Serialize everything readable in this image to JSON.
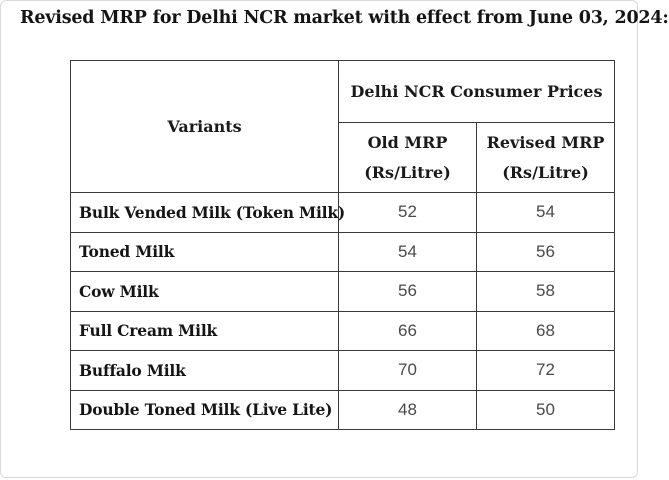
{
  "heading": "Revised MRP for Delhi NCR market with effect from June 03, 2024:",
  "table": {
    "variants_header": "Variants",
    "group_header": "Delhi NCR Consumer Prices",
    "old_mrp_header_line1": "Old MRP",
    "old_mrp_header_line2": "(Rs/Litre)",
    "revised_mrp_header_line1": "Revised MRP",
    "revised_mrp_header_line2": "(Rs/Litre)",
    "rows": [
      {
        "variant": "Bulk Vended Milk (Token Milk)",
        "old_mrp": "52",
        "revised_mrp": "54"
      },
      {
        "variant": "Toned Milk",
        "old_mrp": "54",
        "revised_mrp": "56"
      },
      {
        "variant": "Cow Milk",
        "old_mrp": "56",
        "revised_mrp": "58"
      },
      {
        "variant": "Full Cream Milk",
        "old_mrp": "66",
        "revised_mrp": "68"
      },
      {
        "variant": "Buffalo Milk",
        "old_mrp": "70",
        "revised_mrp": "72"
      },
      {
        "variant": "Double Toned Milk (Live Lite)",
        "old_mrp": "48",
        "revised_mrp": "50"
      }
    ]
  }
}
